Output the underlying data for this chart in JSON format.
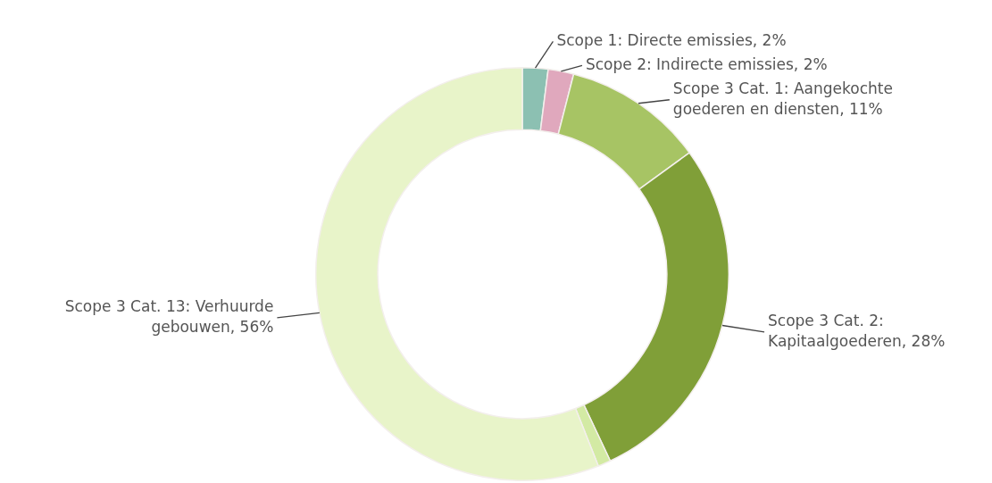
{
  "chart_data": {
    "type": "donut",
    "categories": [
      "Scope 1: Directe emissies, 2%",
      "Scope 2: Indirecte emissies, 2%",
      "Scope 3 Cat. 1: Aangekochte goederen en diensten, 11%",
      "Scope 3 Cat. 2: Kapitaalgoederen, 28%",
      null,
      "Scope 3 Cat. 13: Verhuurde gebouwen, 56%"
    ],
    "values": [
      2,
      2,
      11,
      28,
      1,
      56
    ],
    "colors": [
      "#8cc0b2",
      "#e0a8bd",
      "#a7c464",
      "#809f38",
      "#d3eaa4",
      "#e8f4c9"
    ],
    "legend": false
  }
}
